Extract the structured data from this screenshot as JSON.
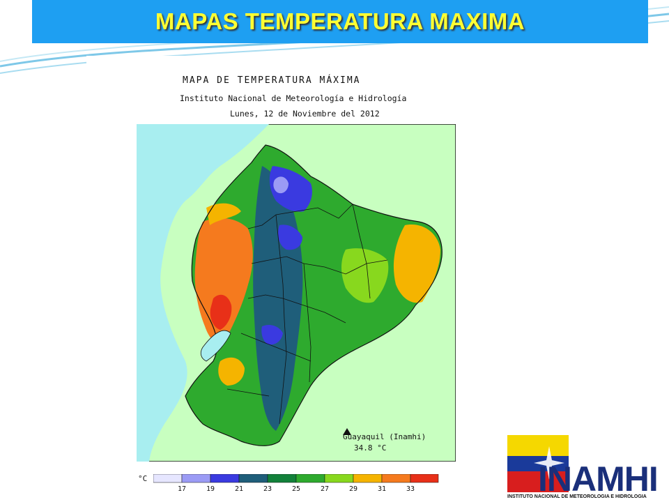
{
  "slide": {
    "title": "MAPAS TEMPERATURA MAXIMA"
  },
  "map": {
    "title": "MAPA DE TEMPERATURA MÁXIMA",
    "institution": "Instituto Nacional de Meteorología e Hidrología",
    "date": "Lunes, 12 de Noviembre del 2012",
    "station": {
      "name": "Guayaquil (Inamhi)",
      "value": "34.8 °C"
    },
    "legend": {
      "unit": "°C",
      "ticks": [
        "17",
        "19",
        "21",
        "23",
        "25",
        "27",
        "29",
        "31",
        "33"
      ],
      "colors": [
        "#e6e6ff",
        "#9b9bf5",
        "#3a3ae0",
        "#1f5e7a",
        "#12813a",
        "#2eaa2e",
        "#88d81e",
        "#f5b400",
        "#f57a1e",
        "#e83018"
      ]
    },
    "colors": {
      "ocean": "#a8eef0",
      "land_outside": "#c8ffc0"
    }
  },
  "logo": {
    "name": "INAMHI",
    "subtitle": "INSTITUTO NACIONAL DE METEOROLOGIA E HIDROLOGIA"
  }
}
